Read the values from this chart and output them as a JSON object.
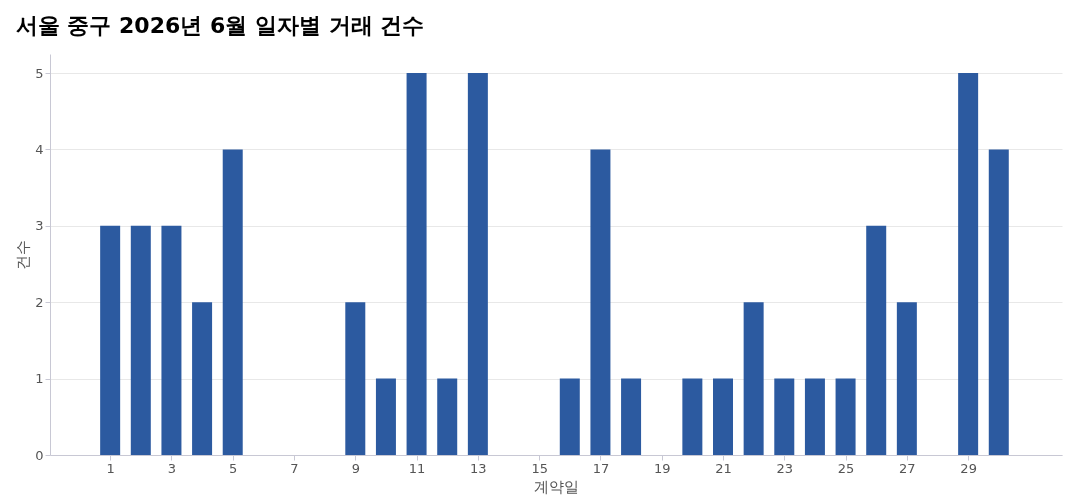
{
  "chart_data": {
    "type": "bar",
    "title": "서울 중구 2026년 6월 일자별 거래 건수",
    "xlabel": "계약일",
    "ylabel": "건수",
    "x": [
      1,
      2,
      3,
      4,
      5,
      6,
      7,
      8,
      9,
      10,
      11,
      12,
      13,
      14,
      15,
      16,
      17,
      18,
      19,
      20,
      21,
      22,
      23,
      24,
      25,
      26,
      27,
      28,
      29,
      30
    ],
    "values": [
      3,
      3,
      3,
      2,
      4,
      0,
      0,
      0,
      2,
      1,
      5,
      1,
      5,
      0,
      0,
      1,
      4,
      1,
      0,
      1,
      1,
      2,
      1,
      1,
      1,
      3,
      2,
      0,
      5,
      4
    ],
    "color": "#2c5aa0",
    "xlim": [
      -0.8,
      31.9
    ],
    "xticks": [
      1,
      3,
      5,
      7,
      9,
      11,
      13,
      15,
      17,
      19,
      21,
      23,
      25,
      27,
      29
    ],
    "ylim": [
      0,
      5.25
    ],
    "yticks": [
      0,
      1,
      2,
      3,
      4,
      5
    ],
    "grid": "y"
  }
}
